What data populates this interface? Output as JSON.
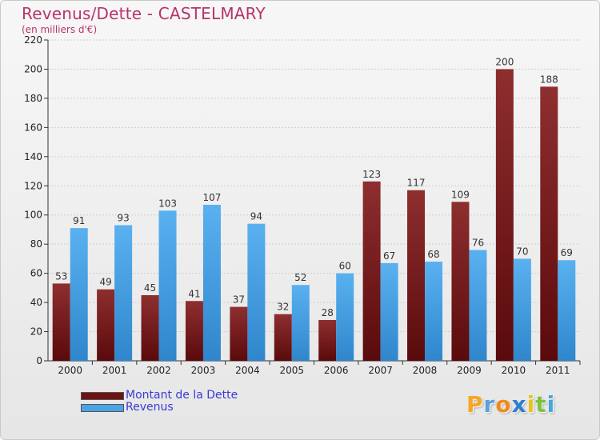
{
  "chart_data": {
    "type": "bar",
    "title": "Revenus/Dette - CASTELMARY",
    "subtitle": "(en milliers d'€)",
    "categories": [
      "2000",
      "2001",
      "2002",
      "2003",
      "2004",
      "2005",
      "2006",
      "2007",
      "2008",
      "2009",
      "2010",
      "2011"
    ],
    "series": [
      {
        "name": "Montant de la Dette",
        "color": "#7a1a1c",
        "values": [
          53,
          49,
          45,
          41,
          37,
          32,
          28,
          123,
          117,
          109,
          200,
          188
        ]
      },
      {
        "name": "Revenus",
        "color": "#4aa3e6",
        "values": [
          91,
          93,
          103,
          107,
          94,
          52,
          60,
          67,
          68,
          76,
          70,
          69
        ]
      }
    ],
    "ylim": [
      0,
      220
    ],
    "yticks": [
      0,
      20,
      40,
      60,
      80,
      100,
      120,
      140,
      160,
      180,
      200,
      220
    ],
    "grid": true,
    "legend_position": "bottom-left"
  },
  "logo": {
    "letters": [
      {
        "char": "P",
        "color": "#f5a623"
      },
      {
        "char": "r",
        "color": "#5aa0dc"
      },
      {
        "char": "o",
        "color": "#f08a1c"
      },
      {
        "char": "x",
        "color": "#2f7fd0"
      },
      {
        "char": "i",
        "color": "#e8c21f"
      },
      {
        "char": "t",
        "color": "#7cc242"
      },
      {
        "char": "i",
        "color": "#46a6e0"
      }
    ]
  }
}
